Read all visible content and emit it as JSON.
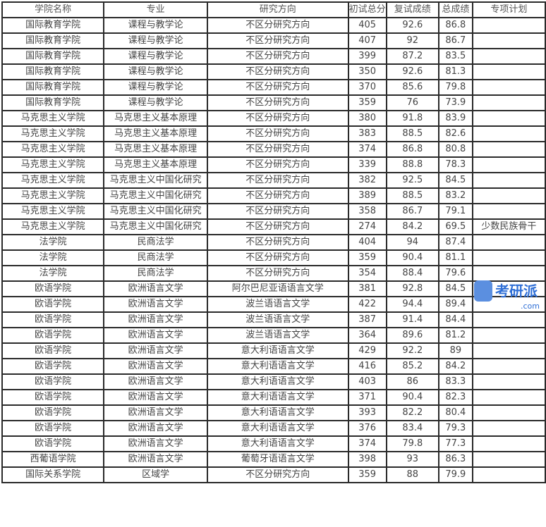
{
  "headers": [
    "学院名称",
    "专业",
    "研究方向",
    "初试总分",
    "复试成绩",
    "总成绩",
    "专项计划"
  ],
  "rows": [
    [
      "国际教育学院",
      "课程与教学论",
      "不区分研究方向",
      "405",
      "92.6",
      "86.8",
      ""
    ],
    [
      "国际教育学院",
      "课程与教学论",
      "不区分研究方向",
      "407",
      "92",
      "86.7",
      ""
    ],
    [
      "国际教育学院",
      "课程与教学论",
      "不区分研究方向",
      "399",
      "87.2",
      "83.5",
      ""
    ],
    [
      "国际教育学院",
      "课程与教学论",
      "不区分研究方向",
      "350",
      "92.6",
      "81.3",
      ""
    ],
    [
      "国际教育学院",
      "课程与教学论",
      "不区分研究方向",
      "370",
      "85.6",
      "79.8",
      ""
    ],
    [
      "国际教育学院",
      "课程与教学论",
      "不区分研究方向",
      "359",
      "76",
      "73.9",
      ""
    ],
    [
      "马克思主义学院",
      "马克思主义基本原理",
      "不区分研究方向",
      "380",
      "91.8",
      "83.9",
      ""
    ],
    [
      "马克思主义学院",
      "马克思主义基本原理",
      "不区分研究方向",
      "383",
      "88.5",
      "82.6",
      ""
    ],
    [
      "马克思主义学院",
      "马克思主义基本原理",
      "不区分研究方向",
      "374",
      "86.8",
      "80.8",
      ""
    ],
    [
      "马克思主义学院",
      "马克思主义基本原理",
      "不区分研究方向",
      "339",
      "88.8",
      "78.3",
      ""
    ],
    [
      "马克思主义学院",
      "马克思主义中国化研究",
      "不区分研究方向",
      "382",
      "92.5",
      "84.5",
      ""
    ],
    [
      "马克思主义学院",
      "马克思主义中国化研究",
      "不区分研究方向",
      "389",
      "88.5",
      "83.2",
      ""
    ],
    [
      "马克思主义学院",
      "马克思主义中国化研究",
      "不区分研究方向",
      "358",
      "86.7",
      "79.1",
      ""
    ],
    [
      "马克思主义学院",
      "马克思主义中国化研究",
      "不区分研究方向",
      "274",
      "84.2",
      "69.5",
      "少数民族骨干"
    ],
    [
      "法学院",
      "民商法学",
      "不区分研究方向",
      "404",
      "94",
      "87.4",
      ""
    ],
    [
      "法学院",
      "民商法学",
      "不区分研究方向",
      "359",
      "90.4",
      "81.1",
      ""
    ],
    [
      "法学院",
      "民商法学",
      "不区分研究方向",
      "354",
      "88.4",
      "79.6",
      ""
    ],
    [
      "欧语学院",
      "欧洲语言文学",
      "阿尔巴尼亚语语言文学",
      "381",
      "92.8",
      "84.5",
      ""
    ],
    [
      "欧语学院",
      "欧洲语言文学",
      "波兰语语言文学",
      "422",
      "94.4",
      "89.4",
      ""
    ],
    [
      "欧语学院",
      "欧洲语言文学",
      "波兰语语言文学",
      "387",
      "91.4",
      "84.4",
      ""
    ],
    [
      "欧语学院",
      "欧洲语言文学",
      "波兰语语言文学",
      "364",
      "89.6",
      "81.2",
      ""
    ],
    [
      "欧语学院",
      "欧洲语言文学",
      "意大利语语言文学",
      "429",
      "92.2",
      "89",
      ""
    ],
    [
      "欧语学院",
      "欧洲语言文学",
      "意大利语语言文学",
      "416",
      "85.2",
      "84.2",
      ""
    ],
    [
      "欧语学院",
      "欧洲语言文学",
      "意大利语语言文学",
      "403",
      "86",
      "83.3",
      ""
    ],
    [
      "欧语学院",
      "欧洲语言文学",
      "意大利语语言文学",
      "371",
      "90.4",
      "82.3",
      ""
    ],
    [
      "欧语学院",
      "欧洲语言文学",
      "意大利语语言文学",
      "393",
      "82.2",
      "80.4",
      ""
    ],
    [
      "欧语学院",
      "欧洲语言文学",
      "意大利语语言文学",
      "376",
      "83.4",
      "79.3",
      ""
    ],
    [
      "欧语学院",
      "欧洲语言文学",
      "意大利语语言文学",
      "374",
      "79.8",
      "77.3",
      ""
    ],
    [
      "西葡语学院",
      "欧洲语言文学",
      "葡萄牙语语言文学",
      "398",
      "93",
      "86.3",
      ""
    ],
    [
      "国际关系学院",
      "区域学",
      "不区分研究方向",
      "359",
      "88",
      "79.9",
      ""
    ]
  ],
  "watermark": {
    "text": "考研派",
    "sub": ".com",
    "color": "#2f6fd6"
  }
}
